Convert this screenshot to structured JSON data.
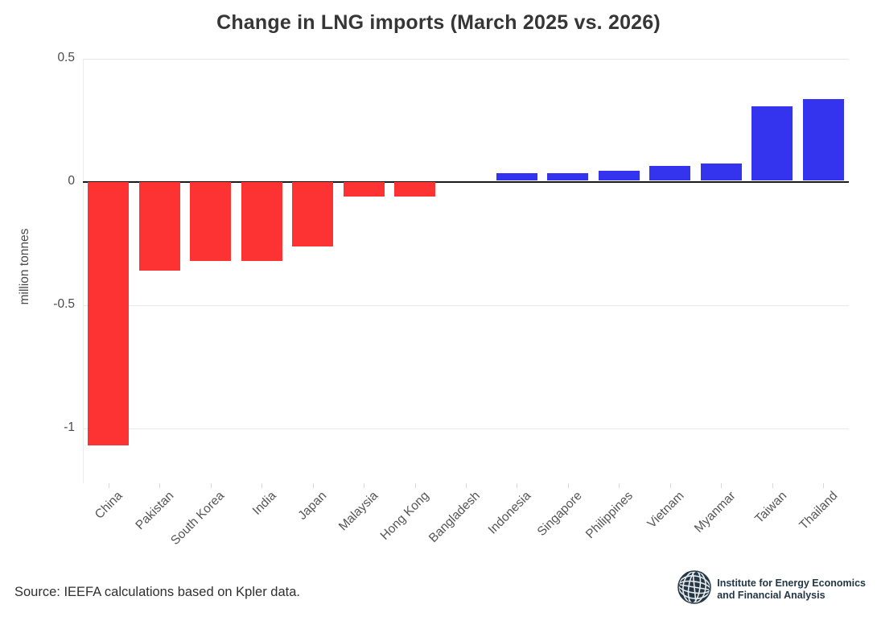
{
  "title": "Change in LNG imports (March 2025 vs. 2026)",
  "footer": {
    "source": "Source: IEEFA calculations based on Kpler data."
  },
  "logo": {
    "icon": "globe-icon",
    "line1": "Institute for Energy Economics",
    "line2": "and Financial Analysis"
  },
  "chart_data": {
    "type": "bar",
    "title": "Change in LNG imports (March 2025 vs. 2026)",
    "categories": [
      "China",
      "Pakistan",
      "South Korea",
      "India",
      "Japan",
      "Malaysia",
      "Hong Kong",
      "Bangladesh",
      "Indonesia",
      "Singapore",
      "Philippines",
      "Vietnam",
      "Myanmar",
      "Taiwan",
      "Thailand"
    ],
    "values": [
      -1.07,
      -0.36,
      -0.32,
      -0.32,
      -0.26,
      -0.06,
      -0.06,
      0,
      0.03,
      0.03,
      0.04,
      0.06,
      0.07,
      0.3,
      0.33
    ],
    "xlabel": "",
    "ylabel": "million tonnes",
    "ylim": [
      -1.22,
      0.5
    ],
    "yticks": [
      0.5,
      0,
      -0.5,
      -1
    ],
    "ytick_labels": [
      "0.5",
      "0",
      "-0.5",
      "-1"
    ],
    "xtick_rotation": 45,
    "grid": true,
    "legend": "none",
    "colors": {
      "positive": "#3434ee",
      "negative": "#fd3232",
      "zero_line": "#1a1a1a",
      "gridline": "#e8e8e8"
    }
  }
}
